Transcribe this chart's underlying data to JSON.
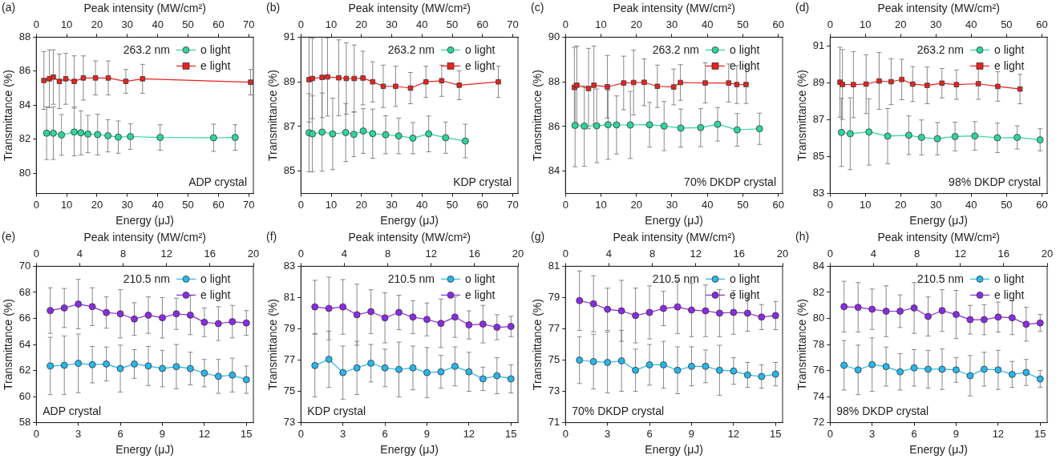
{
  "chart_data": [
    {
      "type": "line",
      "xlabel": "Energy (μJ)",
      "x2label": "Peak intensity (MW/cm²)",
      "ylabel": "Transmittance (%)",
      "xlim": [
        0,
        71.5
      ],
      "xticks": [
        0,
        10,
        20,
        30,
        40,
        50,
        60,
        70
      ],
      "x2lim": [
        0,
        71.5
      ],
      "x2ticks": [
        0,
        10,
        20,
        30,
        40,
        50,
        60,
        70
      ],
      "ylim": [
        78.8,
        88
      ],
      "yticks": [
        80,
        82,
        84,
        86,
        88
      ],
      "legend": "top right",
      "annotations": [
        "(a)",
        "263.2 nm",
        "ADP crystal"
      ],
      "series": [
        {
          "name": "o light",
          "color": "#2fd69a",
          "marker": "circle",
          "x": [
            3.4,
            5.6,
            8.3,
            12.5,
            14.7,
            17,
            20.2,
            23.6,
            27,
            31,
            40.8,
            58.4,
            65.5
          ],
          "values": [
            82.35,
            82.35,
            82.25,
            82.42,
            82.37,
            82.3,
            82.27,
            82.2,
            82.12,
            82.15,
            82.1,
            82.08,
            82.1
          ],
          "errors": [
            1.55,
            1.55,
            1.2,
            1.4,
            1.3,
            1.1,
            1.2,
            0.95,
            0.95,
            0.75,
            0.75,
            0.8,
            0.75
          ]
        },
        {
          "name": "e light",
          "color": "#e8231f",
          "marker": "square",
          "x": [
            2.5,
            4.3,
            5.6,
            7.6,
            9.7,
            12.5,
            15.5,
            19.5,
            23.7,
            29.5,
            35,
            70.6
          ],
          "values": [
            85.45,
            85.55,
            85.65,
            85.4,
            85.55,
            85.4,
            85.6,
            85.6,
            85.6,
            85.4,
            85.55,
            85.35
          ],
          "errors": [
            1.7,
            1.7,
            1.6,
            1.6,
            1.5,
            1.5,
            1.3,
            1.0,
            1.0,
            0.7,
            0.85,
            0.75
          ]
        }
      ]
    },
    {
      "type": "line",
      "xlabel": "Energy (μJ)",
      "x2label": "Peak intensity (MW/cm²)",
      "ylabel": "Transmittance (%)",
      "xlim": [
        0,
        71.7
      ],
      "xticks": [
        0,
        10,
        20,
        30,
        40,
        50,
        60,
        70
      ],
      "x2lim": [
        0,
        71.7
      ],
      "x2ticks": [
        0,
        10,
        20,
        30,
        40,
        50,
        60,
        70
      ],
      "ylim": [
        84,
        91
      ],
      "yticks": [
        85,
        87,
        89,
        91
      ],
      "legend": "top right",
      "annotations": [
        "(b)",
        "263.2 nm",
        "KDP crystal"
      ],
      "series": [
        {
          "name": "o light",
          "color": "#2fd69a",
          "marker": "circle",
          "x": [
            2.7,
            3.8,
            7,
            10.5,
            14.8,
            17.5,
            20.6,
            23.7,
            28,
            32.3,
            37,
            42.2,
            47.8,
            54.3
          ],
          "values": [
            86.72,
            86.67,
            86.75,
            86.67,
            86.73,
            86.65,
            86.8,
            86.68,
            86.63,
            86.58,
            86.48,
            86.67,
            86.5,
            86.35
          ],
          "errors": [
            1.75,
            1.7,
            1.75,
            1.6,
            1.3,
            1.0,
            1.0,
            1.1,
            0.85,
            0.8,
            0.7,
            0.8,
            0.7,
            0.75
          ]
        },
        {
          "name": "e light",
          "color": "#e8231f",
          "marker": "square",
          "x": [
            2.7,
            3.8,
            7,
            8.8,
            12.5,
            15,
            17.6,
            20.5,
            23.7,
            27.2,
            31.3,
            36.2,
            41.3,
            46.5,
            52.3,
            65.2
          ],
          "values": [
            89.1,
            89.15,
            89.2,
            89.22,
            89.18,
            89.15,
            89.15,
            89.17,
            89.0,
            88.8,
            88.8,
            88.72,
            89.0,
            89.05,
            88.85,
            89.0
          ],
          "errors": [
            1.9,
            1.8,
            1.8,
            1.75,
            1.7,
            1.6,
            1.5,
            1.2,
            0.9,
            0.95,
            0.9,
            0.7,
            0.7,
            0.7,
            0.65,
            0.7
          ]
        }
      ]
    },
    {
      "type": "line",
      "xlabel": "Energy (μJ)",
      "x2label": "Peak intensity (MW/cm²)",
      "ylabel": "Transmittance (%)",
      "xlim": [
        0,
        61.2
      ],
      "xticks": [
        0,
        10,
        20,
        30,
        40,
        50,
        60
      ],
      "x2lim": [
        0,
        61.2
      ],
      "x2ticks": [
        0,
        10,
        20,
        30,
        40,
        50,
        60
      ],
      "ylim": [
        83,
        90
      ],
      "yticks": [
        84,
        86,
        88,
        90
      ],
      "legend": "top right",
      "annotations": [
        "(c)",
        "263.2 nm",
        "70% DKDP crystal"
      ],
      "series": [
        {
          "name": "o light",
          "color": "#2fd69a",
          "marker": "circle",
          "x": [
            2.7,
            5.3,
            8.8,
            12,
            14.4,
            18.3,
            23.7,
            27.8,
            32.5,
            38.1,
            42.9,
            48.4,
            54.7
          ],
          "values": [
            86.05,
            86.02,
            86.03,
            86.08,
            86.07,
            86.07,
            86.08,
            86.02,
            85.93,
            85.95,
            86.1,
            85.85,
            85.9
          ],
          "errors": [
            1.85,
            1.8,
            1.65,
            1.55,
            1.3,
            1.5,
            1.0,
            1.1,
            0.85,
            0.85,
            0.75,
            0.73,
            0.7
          ]
        },
        {
          "name": "e light",
          "color": "#e8231f",
          "marker": "square",
          "x": [
            2.5,
            3.2,
            6.5,
            8,
            11.8,
            16.4,
            19.2,
            22.2,
            25.9,
            30.5,
            32.4,
            39.4,
            46,
            48.3,
            50.9
          ],
          "values": [
            87.75,
            87.85,
            87.7,
            87.85,
            87.78,
            87.95,
            87.97,
            87.98,
            87.8,
            87.77,
            87.97,
            87.95,
            87.95,
            87.88,
            87.88
          ],
          "errors": [
            1.8,
            1.75,
            1.8,
            1.75,
            1.4,
            1.2,
            1.45,
            1.05,
            0.95,
            0.8,
            0.8,
            0.9,
            0.85,
            0.85,
            0.85
          ]
        }
      ]
    },
    {
      "type": "line",
      "xlabel": "Energy (μJ)",
      "x2label": "Peak intensity (MW/cm²)",
      "ylabel": "Transmittance (%)",
      "xlim": [
        0,
        61.5
      ],
      "xticks": [
        0,
        10,
        20,
        30,
        40,
        50,
        60
      ],
      "x2lim": [
        0,
        61.5
      ],
      "x2ticks": [
        0,
        10,
        20,
        30,
        40,
        50,
        60
      ],
      "ylim": [
        83,
        91.5
      ],
      "yticks": [
        83,
        85,
        87,
        89,
        91
      ],
      "legend": "top right",
      "annotations": [
        "(d)",
        "263.2 nm",
        "98% DKDP crystal"
      ],
      "series": [
        {
          "name": "o light",
          "color": "#2fd69a",
          "marker": "circle",
          "x": [
            3.2,
            5.7,
            11,
            16.3,
            22.3,
            25.9,
            30.4,
            35.4,
            41,
            47.4,
            53,
            59.5
          ],
          "values": [
            86.32,
            86.25,
            86.35,
            86.12,
            86.17,
            86.05,
            85.98,
            86.1,
            86.13,
            86.03,
            86.05,
            85.92
          ],
          "errors": [
            1.85,
            1.95,
            1.8,
            1.5,
            1.05,
            0.95,
            0.88,
            0.78,
            0.78,
            0.8,
            0.63,
            0.6
          ]
        },
        {
          "name": "e light",
          "color": "#e8231f",
          "marker": "square",
          "x": [
            2.8,
            3.5,
            6.6,
            10.2,
            13.9,
            17.3,
            20.3,
            23.4,
            27.5,
            31.7,
            35.8,
            42,
            47.5,
            53.8
          ],
          "values": [
            89.05,
            88.93,
            88.92,
            88.95,
            89.12,
            89.08,
            89.2,
            88.95,
            88.88,
            89.0,
            88.92,
            88.97,
            88.82,
            88.68
          ],
          "errors": [
            1.9,
            1.9,
            1.8,
            1.6,
            1.55,
            1.25,
            1.1,
            0.95,
            1.0,
            0.8,
            0.8,
            0.85,
            0.8,
            0.8
          ]
        }
      ]
    },
    {
      "type": "line",
      "xlabel": "Energy (μJ)",
      "x2label": "Peak intensity (MW/cm²)",
      "ylabel": "Transmittance (%)",
      "xlim": [
        0,
        15.5
      ],
      "xticks": [
        0,
        3,
        6,
        9,
        12,
        15
      ],
      "x2lim": [
        0,
        20
      ],
      "x2ticks": [
        0,
        4,
        8,
        12,
        16,
        20
      ],
      "ylim": [
        58,
        70
      ],
      "yticks": [
        58,
        60,
        62,
        64,
        66,
        68,
        70
      ],
      "legend": "top right",
      "annotations": [
        "(e)",
        "210.5 nm",
        "ADP crystal"
      ],
      "series": [
        {
          "name": "o light",
          "color": "#29b6ea",
          "marker": "circle",
          "x": [
            1,
            2,
            3,
            4,
            5,
            6,
            7,
            8,
            9,
            10,
            11,
            12,
            13,
            14,
            15
          ],
          "values": [
            62.35,
            62.4,
            62.55,
            62.45,
            62.5,
            62.15,
            62.5,
            62.35,
            62.15,
            62.3,
            62.15,
            61.8,
            61.55,
            61.65,
            61.3
          ],
          "errors": [
            2.2,
            2.25,
            2.25,
            1.4,
            1.3,
            1.8,
            1.1,
            1.5,
            1.4,
            1.7,
            1.25,
            1.05,
            1.3,
            1.3,
            1.05
          ]
        },
        {
          "name": "e light",
          "color": "#8a2be2",
          "marker": "circle",
          "x": [
            1,
            2,
            3,
            4,
            5,
            6,
            7,
            8,
            9,
            10,
            11,
            12,
            13,
            14,
            15
          ],
          "values": [
            66.6,
            66.8,
            67.1,
            66.9,
            66.45,
            66.35,
            65.95,
            66.25,
            66.05,
            66.35,
            66.25,
            65.7,
            65.6,
            65.75,
            65.65
          ],
          "errors": [
            1.75,
            1.5,
            1.9,
            1.45,
            1.2,
            1.85,
            1.25,
            1.4,
            1.55,
            1.2,
            1.5,
            1.1,
            1.3,
            1.25,
            0.95
          ]
        }
      ]
    },
    {
      "type": "line",
      "xlabel": "Energy (μJ)",
      "x2label": "Peak intensity (MW/cm²)",
      "ylabel": "Transmittance (%)",
      "xlim": [
        0,
        15.5
      ],
      "xticks": [
        0,
        3,
        6,
        9,
        12,
        15
      ],
      "x2lim": [
        0,
        20
      ],
      "x2ticks": [
        0,
        4,
        8,
        12,
        16,
        20
      ],
      "ylim": [
        73,
        83
      ],
      "yticks": [
        73,
        75,
        77,
        79,
        81,
        83
      ],
      "legend": "top right",
      "annotations": [
        "(f)",
        "210.5 nm",
        "KDP crystal"
      ],
      "series": [
        {
          "name": "o light",
          "color": "#29b6ea",
          "marker": "circle",
          "x": [
            1,
            2,
            3,
            4,
            5,
            6,
            7,
            8,
            9,
            10,
            11,
            12,
            13,
            14,
            15
          ],
          "values": [
            76.65,
            77.05,
            76.2,
            76.5,
            76.8,
            76.5,
            76.4,
            76.5,
            76.2,
            76.25,
            76.6,
            76.25,
            75.8,
            76.0,
            75.8
          ],
          "errors": [
            2.0,
            1.8,
            1.7,
            1.7,
            1.2,
            1.2,
            1.75,
            1.4,
            1.6,
            1.05,
            1.25,
            1.25,
            0.75,
            1.15,
            0.9
          ]
        },
        {
          "name": "e light",
          "color": "#8a2be2",
          "marker": "circle",
          "x": [
            1,
            2,
            3,
            4,
            5,
            6,
            7,
            8,
            9,
            10,
            11,
            12,
            13,
            14,
            15
          ],
          "values": [
            80.4,
            80.3,
            80.4,
            79.9,
            80.1,
            79.7,
            80.05,
            79.75,
            79.6,
            79.35,
            79.75,
            79.25,
            79.3,
            79.1,
            79.15
          ],
          "errors": [
            1.7,
            2.0,
            1.75,
            1.95,
            1.4,
            1.6,
            1.1,
            1.05,
            1.05,
            1.55,
            1.3,
            0.9,
            1.2,
            0.8,
            0.65
          ]
        }
      ]
    },
    {
      "type": "line",
      "xlabel": "Energy (μJ)",
      "x2label": "Peak intensity (MW/cm²)",
      "ylabel": "Transmittance (%)",
      "xlim": [
        0,
        15.5
      ],
      "xticks": [
        0,
        3,
        6,
        9,
        12,
        15
      ],
      "x2lim": [
        0,
        20
      ],
      "x2ticks": [
        0,
        4,
        8,
        12,
        16,
        20
      ],
      "ylim": [
        71,
        81
      ],
      "yticks": [
        71,
        73,
        75,
        77,
        79,
        81
      ],
      "legend": "top right",
      "annotations": [
        "(g)",
        "210.5 nm",
        "70% DKDP crystal"
      ],
      "series": [
        {
          "name": "o light",
          "color": "#29b6ea",
          "marker": "circle",
          "x": [
            1,
            2,
            3,
            4,
            5,
            6,
            7,
            8,
            9,
            10,
            11,
            12,
            13,
            14,
            15
          ],
          "values": [
            75.0,
            74.9,
            74.85,
            74.95,
            74.35,
            74.7,
            74.7,
            74.35,
            74.6,
            74.6,
            74.35,
            74.3,
            74.05,
            73.95,
            74.1
          ],
          "errors": [
            1.5,
            1.75,
            1.95,
            1.95,
            1.35,
            1.3,
            1.5,
            1.5,
            1.25,
            1.05,
            1.6,
            0.85,
            0.8,
            0.75,
            0.75
          ]
        },
        {
          "name": "e light",
          "color": "#8a2be2",
          "marker": "circle",
          "x": [
            1,
            2,
            3,
            4,
            5,
            6,
            7,
            8,
            9,
            10,
            11,
            12,
            13,
            14,
            15
          ],
          "values": [
            78.8,
            78.6,
            78.25,
            78.15,
            77.85,
            78.05,
            78.3,
            78.4,
            78.2,
            78.15,
            78.0,
            78.05,
            78.0,
            77.75,
            77.85
          ],
          "errors": [
            1.9,
            1.8,
            1.35,
            1.95,
            1.75,
            1.7,
            1.1,
            1.7,
            1.7,
            1.65,
            1.5,
            1.4,
            1.15,
            0.8,
            0.9
          ]
        }
      ]
    },
    {
      "type": "line",
      "xlabel": "Energy (μJ)",
      "x2label": "Peak intensity (MW/cm²)",
      "ylabel": "Transmittance (%)",
      "xlim": [
        0,
        15.5
      ],
      "xticks": [
        0,
        3,
        6,
        9,
        12,
        15
      ],
      "x2lim": [
        0,
        20
      ],
      "x2ticks": [
        0,
        4,
        8,
        12,
        16,
        20
      ],
      "ylim": [
        72,
        84
      ],
      "yticks": [
        72,
        74,
        76,
        78,
        80,
        82,
        84
      ],
      "legend": "top right",
      "annotations": [
        "(h)",
        "210.5 nm",
        "98% DKDP crystal"
      ],
      "series": [
        {
          "name": "o light",
          "color": "#29b6ea",
          "marker": "circle",
          "x": [
            1,
            2,
            3,
            4,
            5,
            6,
            7,
            8,
            9,
            10,
            11,
            12,
            13,
            14,
            15
          ],
          "values": [
            76.4,
            76.05,
            76.45,
            76.3,
            75.9,
            76.2,
            76.1,
            76.1,
            76.05,
            75.6,
            76.1,
            76.05,
            75.7,
            75.85,
            75.35
          ],
          "errors": [
            1.9,
            1.9,
            2.05,
            1.5,
            1.4,
            1.4,
            1.45,
            1.55,
            0.95,
            1.55,
            1.3,
            1.5,
            1.0,
            1.0,
            0.65
          ]
        },
        {
          "name": "e light",
          "color": "#8a2be2",
          "marker": "circle",
          "x": [
            1,
            2,
            3,
            4,
            5,
            6,
            7,
            8,
            9,
            10,
            11,
            12,
            13,
            14,
            15
          ],
          "values": [
            80.9,
            80.85,
            80.7,
            80.55,
            80.55,
            80.8,
            80.15,
            80.6,
            80.3,
            79.9,
            79.9,
            80.1,
            80.05,
            79.55,
            79.65
          ],
          "errors": [
            1.95,
            1.9,
            1.55,
            1.95,
            1.25,
            1.95,
            1.5,
            1.6,
            1.85,
            1.1,
            1.15,
            1.15,
            1.3,
            1.3,
            0.65
          ]
        }
      ]
    }
  ]
}
